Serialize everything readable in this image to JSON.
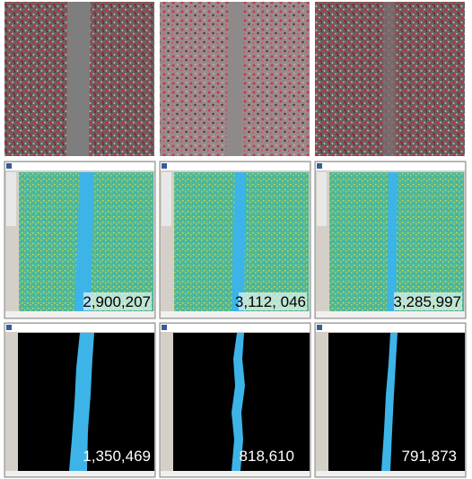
{
  "row2_counts": [
    "2,900,207",
    "3,112, 046",
    "3,285,997"
  ],
  "row3_counts": [
    "1,350,469",
    "818,610",
    "791,873"
  ]
}
